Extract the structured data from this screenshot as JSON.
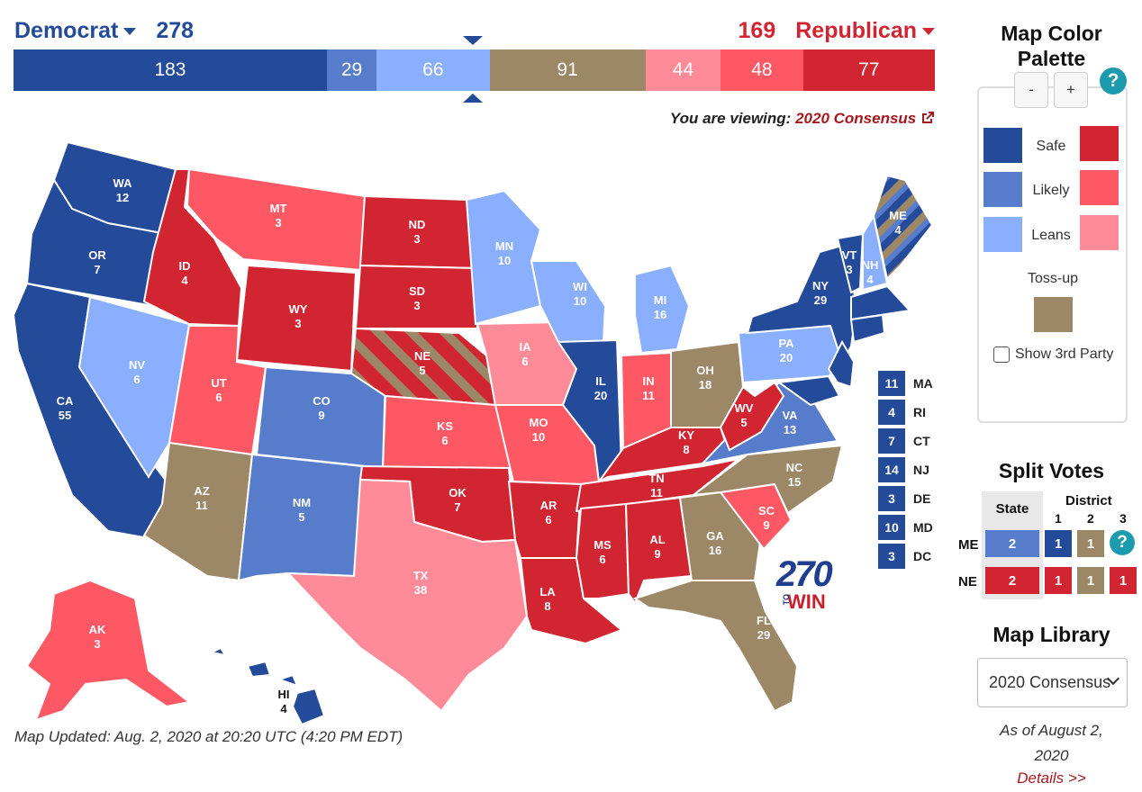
{
  "header": {
    "dem_label": "Democrat",
    "dem_total": "278",
    "rep_total": "169",
    "rep_label": "Republican"
  },
  "ev_bar": [
    {
      "value": "183",
      "color": "#244a9a",
      "category": "Safe Democrat",
      "ev": 183
    },
    {
      "value": "29",
      "color": "#577ccc",
      "category": "Likely Democrat",
      "ev": 29
    },
    {
      "value": "66",
      "color": "#8aafff",
      "category": "Leans Democrat",
      "ev": 66
    },
    {
      "value": "91",
      "color": "#9c8767",
      "category": "Toss-up",
      "ev": 91
    },
    {
      "value": "44",
      "color": "#ff8b98",
      "category": "Leans Republican",
      "ev": 44
    },
    {
      "value": "48",
      "color": "#ff5865",
      "category": "Likely Republican",
      "ev": 48
    },
    {
      "value": "77",
      "color": "#d22532",
      "category": "Safe Republican",
      "ev": 77
    }
  ],
  "viewing": {
    "prefix": "You are viewing:",
    "map_name": "2020 Consensus",
    "icon": "external-link-icon"
  },
  "colors": {
    "safe_d": "#244a9a",
    "likely_d": "#577ccc",
    "leans_d": "#8aafff",
    "tossup": "#9c8767",
    "leans_r": "#ff8b98",
    "likely_r": "#ff5865",
    "safe_r": "#d22532"
  },
  "states": [
    {
      "abbr": "WA",
      "ev": "12",
      "rating": "safe_d"
    },
    {
      "abbr": "OR",
      "ev": "7",
      "rating": "safe_d"
    },
    {
      "abbr": "CA",
      "ev": "55",
      "rating": "safe_d"
    },
    {
      "abbr": "NV",
      "ev": "6",
      "rating": "leans_d"
    },
    {
      "abbr": "ID",
      "ev": "4",
      "rating": "safe_r"
    },
    {
      "abbr": "MT",
      "ev": "3",
      "rating": "likely_r"
    },
    {
      "abbr": "WY",
      "ev": "3",
      "rating": "safe_r"
    },
    {
      "abbr": "UT",
      "ev": "6",
      "rating": "likely_r"
    },
    {
      "abbr": "AZ",
      "ev": "11",
      "rating": "tossup"
    },
    {
      "abbr": "CO",
      "ev": "9",
      "rating": "likely_d"
    },
    {
      "abbr": "NM",
      "ev": "5",
      "rating": "likely_d"
    },
    {
      "abbr": "ND",
      "ev": "3",
      "rating": "safe_r"
    },
    {
      "abbr": "SD",
      "ev": "3",
      "rating": "safe_r"
    },
    {
      "abbr": "NE",
      "ev": "5",
      "rating": "safe_r"
    },
    {
      "abbr": "KS",
      "ev": "6",
      "rating": "likely_r"
    },
    {
      "abbr": "OK",
      "ev": "7",
      "rating": "safe_r"
    },
    {
      "abbr": "TX",
      "ev": "38",
      "rating": "leans_r"
    },
    {
      "abbr": "MN",
      "ev": "10",
      "rating": "leans_d"
    },
    {
      "abbr": "IA",
      "ev": "6",
      "rating": "leans_r"
    },
    {
      "abbr": "MO",
      "ev": "10",
      "rating": "likely_r"
    },
    {
      "abbr": "AR",
      "ev": "6",
      "rating": "safe_r"
    },
    {
      "abbr": "LA",
      "ev": "8",
      "rating": "safe_r"
    },
    {
      "abbr": "WI",
      "ev": "10",
      "rating": "leans_d"
    },
    {
      "abbr": "IL",
      "ev": "20",
      "rating": "safe_d"
    },
    {
      "abbr": "MI",
      "ev": "16",
      "rating": "leans_d"
    },
    {
      "abbr": "IN",
      "ev": "11",
      "rating": "likely_r"
    },
    {
      "abbr": "OH",
      "ev": "18",
      "rating": "tossup"
    },
    {
      "abbr": "KY",
      "ev": "8",
      "rating": "safe_r"
    },
    {
      "abbr": "TN",
      "ev": "11",
      "rating": "safe_r"
    },
    {
      "abbr": "MS",
      "ev": "6",
      "rating": "safe_r"
    },
    {
      "abbr": "AL",
      "ev": "9",
      "rating": "safe_r"
    },
    {
      "abbr": "GA",
      "ev": "16",
      "rating": "tossup"
    },
    {
      "abbr": "FL",
      "ev": "29",
      "rating": "tossup"
    },
    {
      "abbr": "SC",
      "ev": "9",
      "rating": "likely_r"
    },
    {
      "abbr": "NC",
      "ev": "15",
      "rating": "tossup"
    },
    {
      "abbr": "VA",
      "ev": "13",
      "rating": "likely_d"
    },
    {
      "abbr": "WV",
      "ev": "5",
      "rating": "safe_r"
    },
    {
      "abbr": "PA",
      "ev": "20",
      "rating": "leans_d"
    },
    {
      "abbr": "NY",
      "ev": "29",
      "rating": "safe_d"
    },
    {
      "abbr": "VT",
      "ev": "3",
      "rating": "safe_d"
    },
    {
      "abbr": "NH",
      "ev": "4",
      "rating": "leans_d"
    },
    {
      "abbr": "ME",
      "ev": "4",
      "rating": "likely_d"
    },
    {
      "abbr": "AK",
      "ev": "3",
      "rating": "likely_r"
    },
    {
      "abbr": "HI",
      "ev": "4",
      "rating": "safe_d"
    }
  ],
  "small_states": [
    {
      "ev": "11",
      "abbr": "MA"
    },
    {
      "ev": "4",
      "abbr": "RI"
    },
    {
      "ev": "7",
      "abbr": "CT"
    },
    {
      "ev": "14",
      "abbr": "NJ"
    },
    {
      "ev": "3",
      "abbr": "DE"
    },
    {
      "ev": "10",
      "abbr": "MD"
    },
    {
      "ev": "3",
      "abbr": "DC"
    }
  ],
  "logo": {
    "line1": "270",
    "to": "TO",
    "line2": "WIN"
  },
  "map_updated": "Map Updated: Aug. 2, 2020 at 20:20 UTC (4:20 PM EDT)",
  "palette": {
    "title": "Map Color Palette",
    "minus": "-",
    "plus": "+",
    "help": "?",
    "safe": "Safe",
    "likely": "Likely",
    "leans": "Leans",
    "tossup": "Toss-up",
    "third_party": "Show 3rd Party"
  },
  "split_votes": {
    "title": "Split Votes",
    "state_header": "State",
    "district_header": "District",
    "district_numbers": [
      "1",
      "2",
      "3"
    ],
    "help": "?",
    "rows": [
      {
        "label": "ME",
        "state": "2",
        "d1": "1",
        "d2": "1"
      },
      {
        "label": "NE",
        "state": "2",
        "d1": "1",
        "d2": "1",
        "d3": "1"
      }
    ]
  },
  "library": {
    "title": "Map Library",
    "selected": "2020 Consensus",
    "as_of": "As of August 2, 2020",
    "details": "Details >>"
  }
}
